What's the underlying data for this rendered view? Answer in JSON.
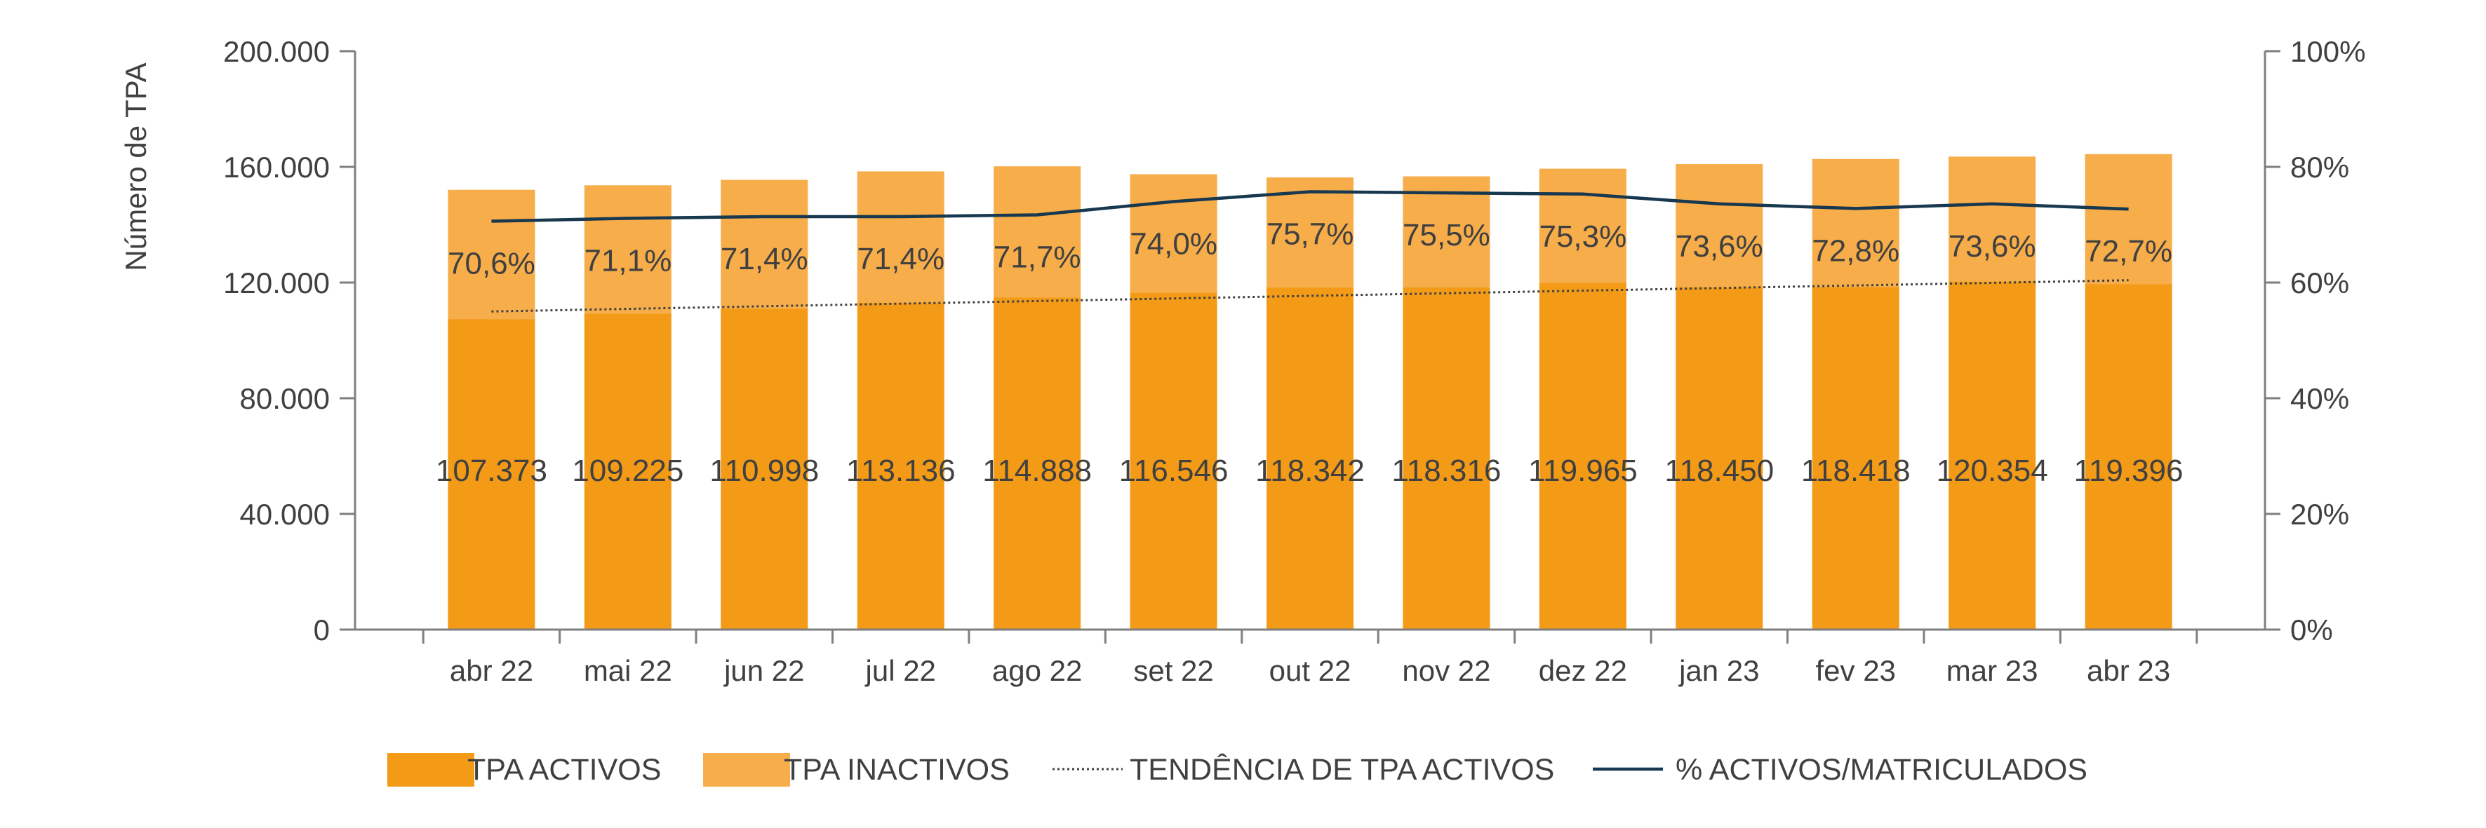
{
  "chart_data": {
    "type": "bar",
    "stacked": true,
    "title": "",
    "xlabel": "",
    "ylabel": "Número de TPA",
    "categories": [
      "abr 22",
      "mai 22",
      "jun 22",
      "jul 22",
      "ago 22",
      "set 22",
      "out 22",
      "nov 22",
      "dez 22",
      "jan 23",
      "fev 23",
      "mar 23",
      "abr 23"
    ],
    "ylim": [
      0,
      200000
    ],
    "y_ticks": [
      "0",
      "40.000",
      "80.000",
      "120.000",
      "160.000",
      "200.000"
    ],
    "y2lim": [
      0,
      100
    ],
    "y2_ticks": [
      "0%",
      "20%",
      "40%",
      "60%",
      "80%",
      "100%"
    ],
    "series": [
      {
        "name": "TPA ACTIVOS",
        "kind": "bar",
        "color": "#f39a17",
        "values": [
          107373,
          109225,
          110998,
          113136,
          114888,
          116546,
          118342,
          118316,
          119965,
          118450,
          118418,
          120354,
          119396
        ],
        "labels": [
          "107.373",
          "109.225",
          "110.998",
          "113.136",
          "114.888",
          "116.546",
          "118.342",
          "118.316",
          "119.965",
          "118.450",
          "118.418",
          "120.354",
          "119.396"
        ]
      },
      {
        "name": "TPA INACTIVOS",
        "kind": "bar",
        "color": "#f6ad4a",
        "values": [
          44700,
          44400,
          44500,
          45300,
          45300,
          40900,
          38000,
          38400,
          39400,
          42500,
          44300,
          43200,
          45000
        ]
      },
      {
        "name": "TENDÊNCIA DE TPA ACTIVOS",
        "kind": "trendline",
        "color": "#404040",
        "values": [
          110000,
          110900,
          111800,
          112700,
          113600,
          114500,
          115400,
          116300,
          117200,
          118100,
          119000,
          119900,
          120800
        ]
      },
      {
        "name": "% ACTIVOS/MATRICULADOS",
        "kind": "line",
        "axis": "secondary",
        "color": "#17384f",
        "values": [
          70.6,
          71.1,
          71.4,
          71.4,
          71.7,
          74.0,
          75.7,
          75.5,
          75.3,
          73.6,
          72.8,
          73.6,
          72.7
        ],
        "labels": [
          "70,6%",
          "71,1%",
          "71,4%",
          "71,4%",
          "71,7%",
          "74,0%",
          "75,7%",
          "75,5%",
          "75,3%",
          "73,6%",
          "72,8%",
          "73,6%",
          "72,7%"
        ]
      }
    ],
    "legend": {
      "position": "bottom"
    },
    "grid": false
  }
}
